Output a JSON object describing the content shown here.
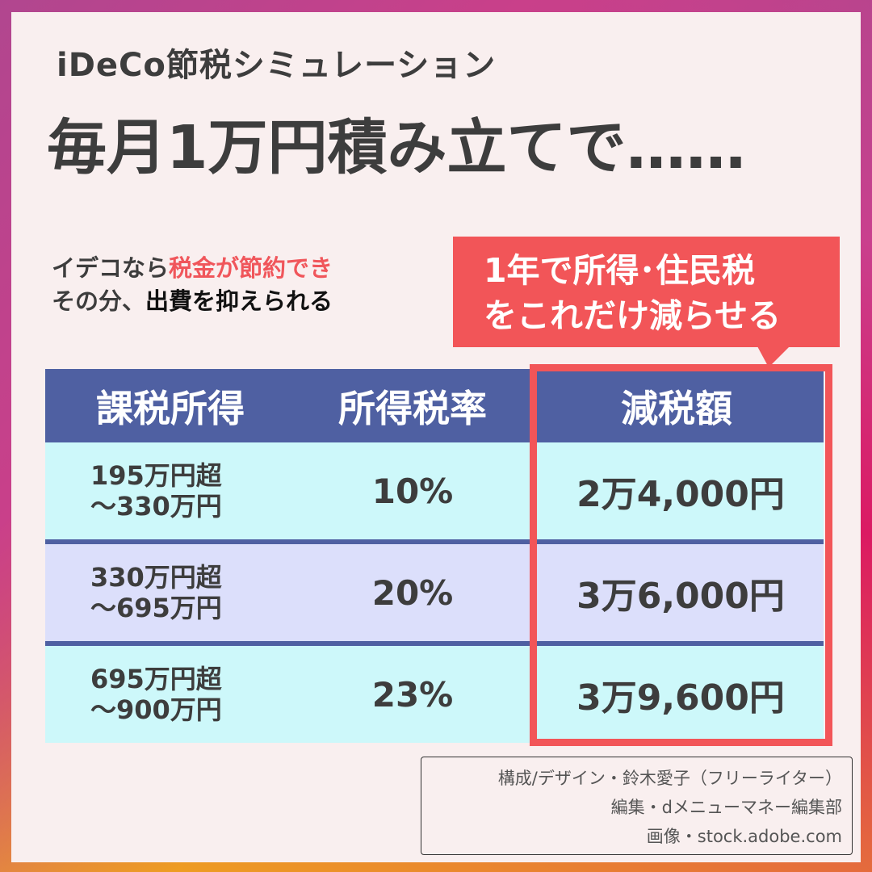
{
  "colors": {
    "panel_bg": "#f9efef",
    "text_dark": "#3d3d3d",
    "accent_red": "#f25558",
    "header_navy": "#4f60a2",
    "row_cyan": "#cdf8fa",
    "row_lavender": "#dcdffb",
    "frame_gradient": [
      "#b1468f",
      "#db1a63",
      "#e4683e",
      "#f0a91c"
    ]
  },
  "header": {
    "kicker": "iDeCo節税シミュレーション",
    "headline": "毎月1万円積み立てで……"
  },
  "subcopy": {
    "line1_plain": "イデコなら",
    "line1_red": "税金が節約でき",
    "line2_plain": "その分、",
    "line2_bold": "出費を抑えられる"
  },
  "callout": {
    "line1": "1年で所得･住民税",
    "line2": "をこれだけ減らせる"
  },
  "table": {
    "headers": [
      "課税所得",
      "所得税率",
      "減税額"
    ],
    "rows": [
      {
        "range_from": "195万円超",
        "range_to": "～330万円",
        "rate": "10%",
        "reduction": "2万4,000円"
      },
      {
        "range_from": "330万円超",
        "range_to": "～695万円",
        "rate": "20%",
        "reduction": "3万6,000円"
      },
      {
        "range_from": "695万円超",
        "range_to": "～900万円",
        "rate": "23%",
        "reduction": "3万9,600円"
      }
    ]
  },
  "credits": {
    "line1": "構成/デザイン・鈴木愛子（フリーライター）",
    "line2": "編集・dメニューマネー編集部",
    "line3": "画像・stock.adobe.com"
  },
  "chart_data": {
    "type": "table",
    "title": "iDeCo節税シミュレーション 毎月1万円積み立てで……",
    "columns": [
      "課税所得",
      "所得税率",
      "減税額"
    ],
    "rows": [
      [
        "195万円超～330万円",
        "10%",
        "2万4,000円"
      ],
      [
        "330万円超～695万円",
        "20%",
        "3万6,000円"
      ],
      [
        "695万円超～900万円",
        "23%",
        "3万9,600円"
      ]
    ],
    "annotation": "1年で所得･住民税をこれだけ減らせる"
  }
}
